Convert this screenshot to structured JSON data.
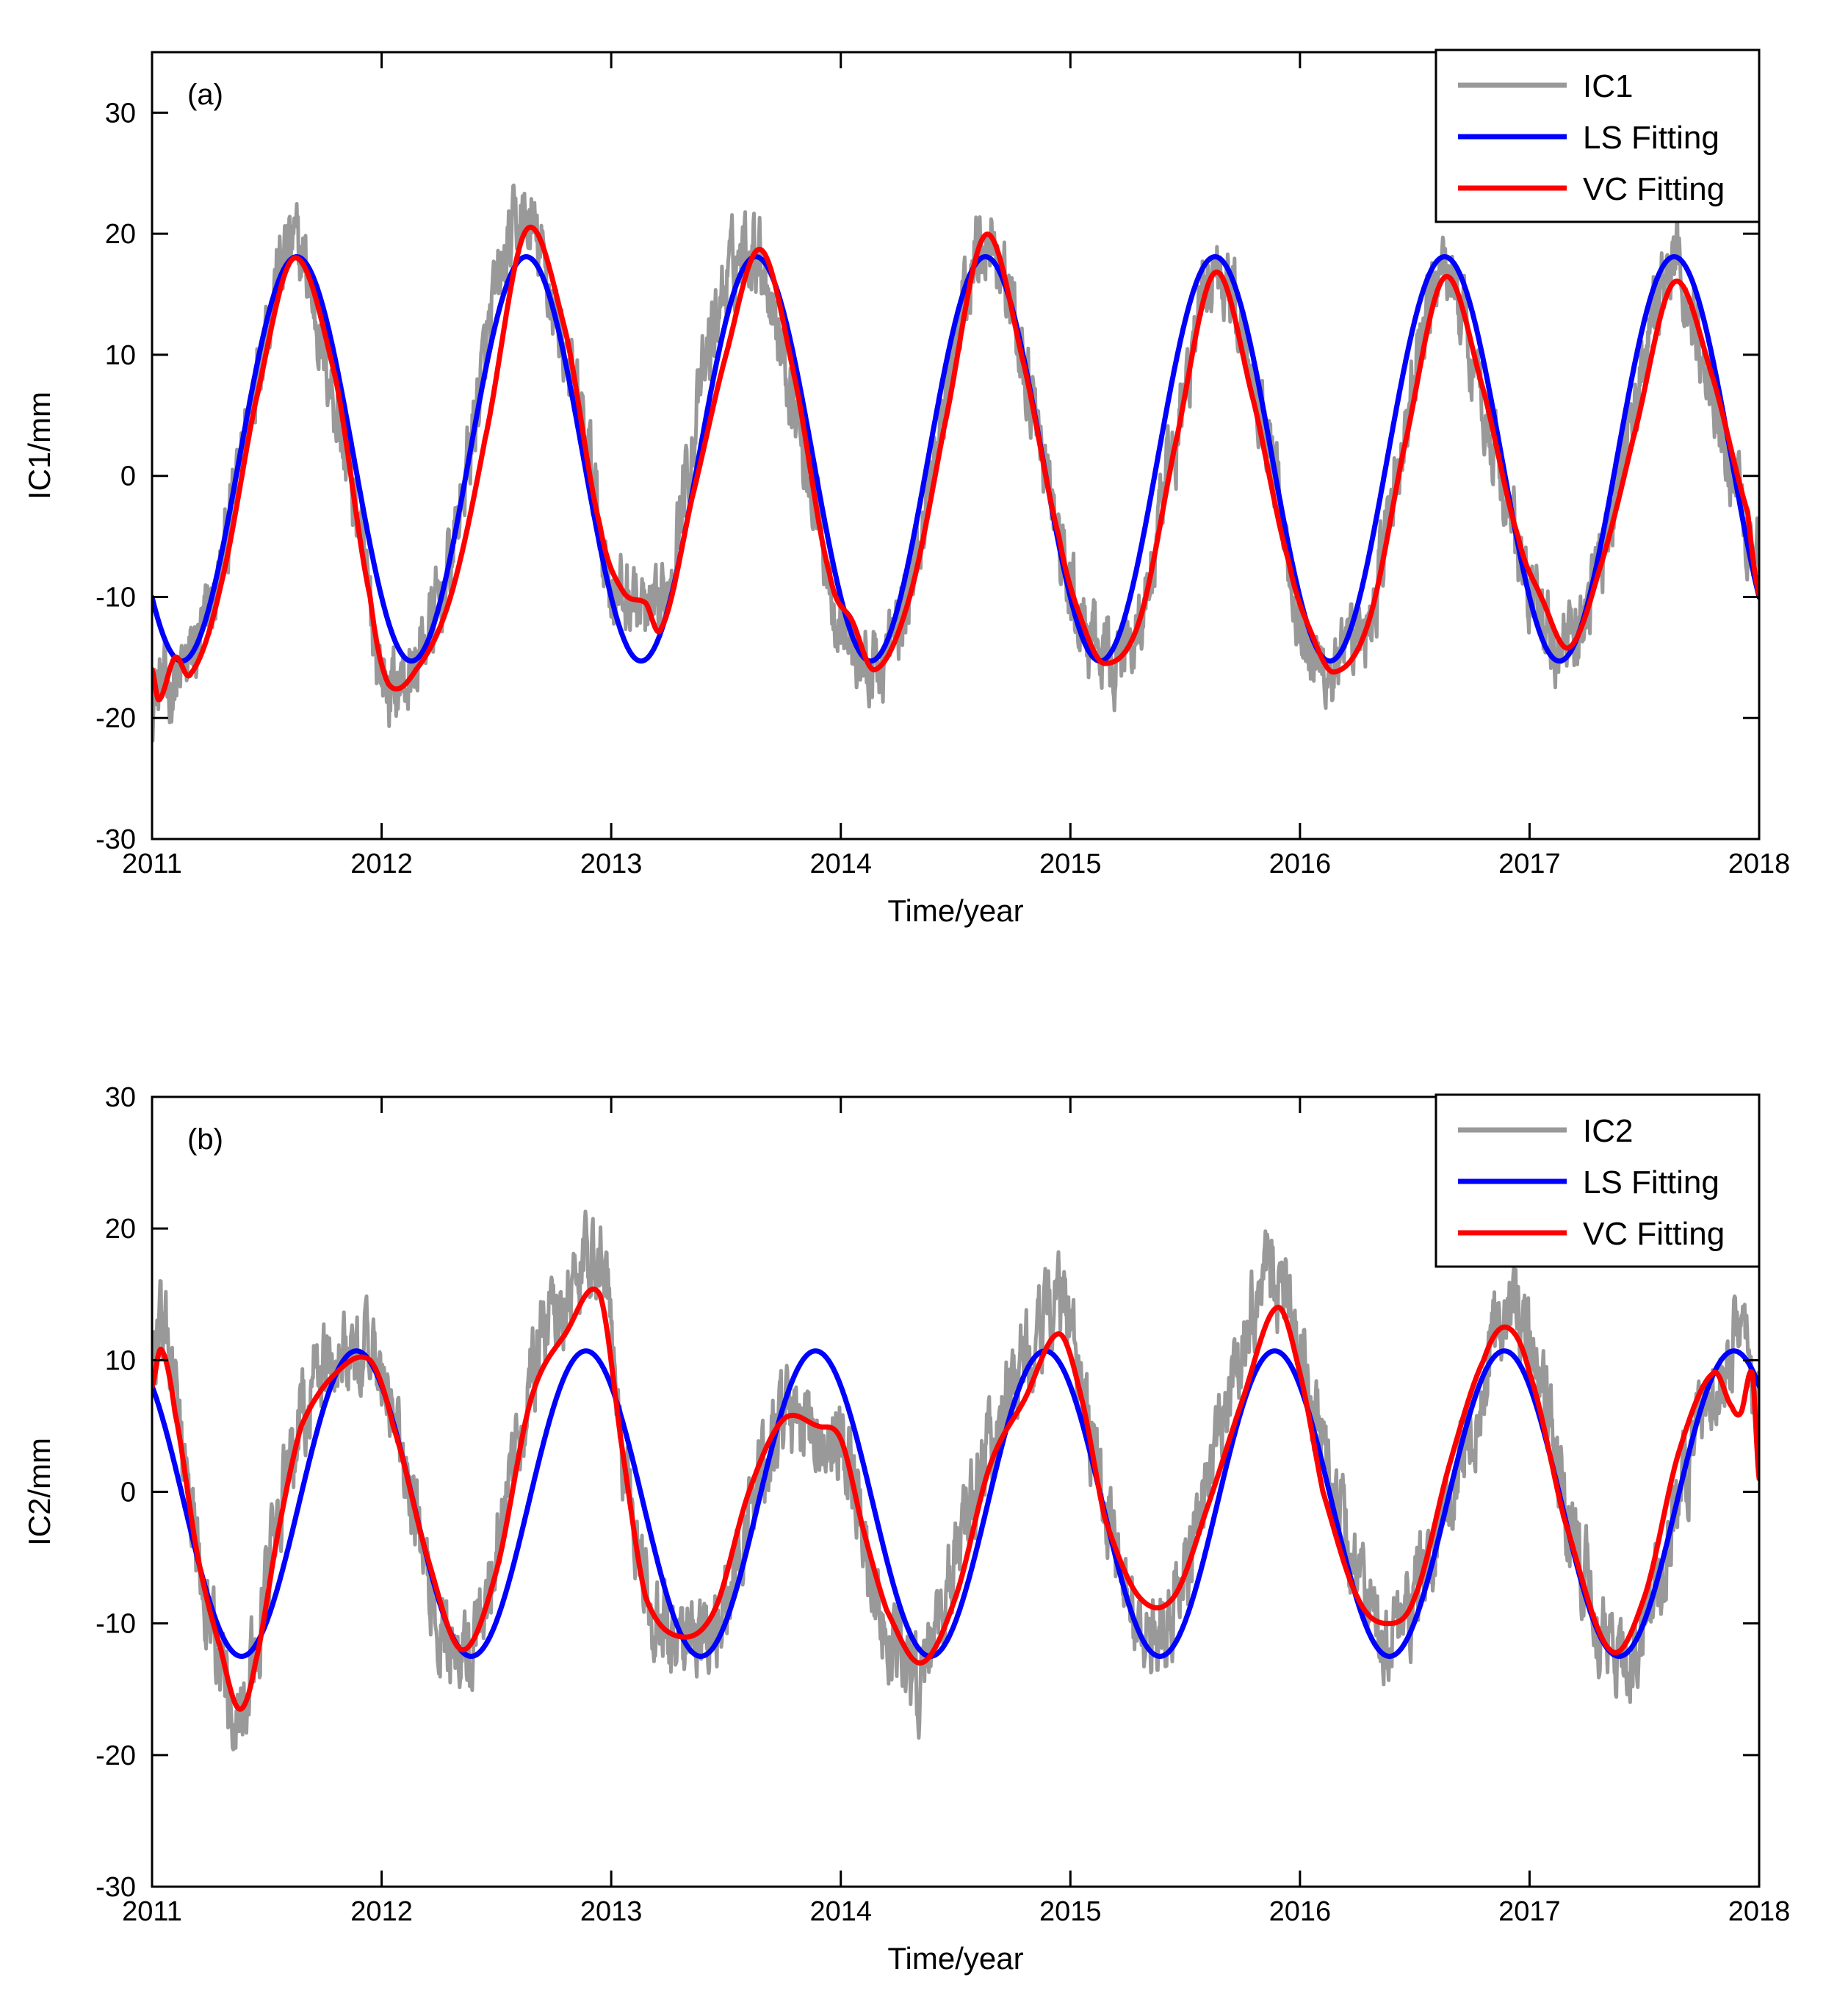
{
  "chart_data": [
    {
      "type": "line",
      "panel_label": "(a)",
      "xlabel": "Time/year",
      "ylabel": "IC1/mm",
      "xlim": [
        2011,
        2018
      ],
      "ylim": [
        -30,
        35
      ],
      "x_ticks": [
        2011,
        2012,
        2013,
        2014,
        2015,
        2016,
        2017,
        2018
      ],
      "y_ticks": [
        -30,
        -20,
        -10,
        0,
        10,
        20,
        30
      ],
      "legend_position": "top-right",
      "series": [
        {
          "name": "IC1",
          "color": "#999999",
          "description": "daily observed component (noisy)",
          "x": [
            2011.0,
            2011.1,
            2011.2,
            2011.3,
            2011.4,
            2011.5,
            2011.62,
            2011.75,
            2011.9,
            2012.0,
            2012.1,
            2012.2,
            2012.3,
            2012.4,
            2012.5,
            2012.62,
            2012.75,
            2012.9,
            2013.0,
            2013.1,
            2013.2,
            2013.3,
            2013.4,
            2013.5,
            2013.63,
            2013.75,
            2013.9,
            2014.0,
            2014.15,
            2014.3,
            2014.45,
            2014.63,
            2014.75,
            2014.9,
            2015.0,
            2015.15,
            2015.3,
            2015.45,
            2015.62,
            2015.75,
            2015.9,
            2016.0,
            2016.12,
            2016.3,
            2016.45,
            2016.62,
            2016.75,
            2016.9,
            2017.0,
            2017.18,
            2017.3,
            2017.45,
            2017.62,
            2017.75,
            2017.9,
            2018.0
          ],
          "y": [
            -18,
            -17,
            -14,
            -8,
            3,
            13,
            19,
            10,
            -4,
            -16,
            -17,
            -13,
            -7,
            4,
            15,
            21,
            14,
            2,
            -9,
            -10,
            -12,
            -3,
            8,
            16,
            19,
            10,
            -3,
            -12,
            -16,
            -9,
            6,
            20,
            13,
            0,
            -10,
            -15,
            -12,
            2,
            17,
            12,
            0,
            -12,
            -16,
            -12,
            3,
            17,
            10,
            -2,
            -10,
            -14,
            -7,
            5,
            17,
            10,
            0,
            -7
          ]
        },
        {
          "name": "LS Fitting",
          "color": "#0000ff",
          "description": "least-squares annual harmonic: y = 1.4 + 16.7*cos(2*pi*(t-0.63))",
          "model": {
            "mean": 1.4,
            "amplitude": 16.7,
            "peak_phase": 0.63
          },
          "x": [
            2011.0,
            2011.13,
            2011.38,
            2011.63,
            2011.88,
            2012.13,
            2012.38,
            2012.63,
            2012.88,
            2013.13,
            2013.38,
            2013.63,
            2013.88,
            2014.13,
            2014.38,
            2014.63,
            2014.88,
            2015.13,
            2015.38,
            2015.63,
            2015.88,
            2016.13,
            2016.38,
            2016.63,
            2016.88,
            2017.13,
            2017.38,
            2017.63,
            2017.88,
            2018.0
          ],
          "y": [
            -11.4,
            -15.3,
            1.4,
            18.1,
            1.4,
            -15.3,
            1.4,
            18.1,
            1.4,
            -15.3,
            1.4,
            18.1,
            1.4,
            -15.3,
            1.4,
            18.1,
            1.4,
            -15.3,
            1.4,
            18.1,
            1.4,
            -15.3,
            1.4,
            18.1,
            1.4,
            -15.3,
            1.4,
            18.1,
            1.4,
            -10.4
          ]
        },
        {
          "name": "VC Fitting",
          "color": "#ff0000",
          "description": "variable-coefficient fit",
          "x": [
            2011.0,
            2011.03,
            2011.1,
            2011.17,
            2011.3,
            2011.45,
            2011.62,
            2011.8,
            2011.95,
            2012.03,
            2012.15,
            2012.3,
            2012.45,
            2012.63,
            2012.8,
            2012.95,
            2013.05,
            2013.15,
            2013.22,
            2013.35,
            2013.5,
            2013.65,
            2013.8,
            2013.95,
            2014.05,
            2014.15,
            2014.3,
            2014.45,
            2014.63,
            2014.8,
            2014.95,
            2015.05,
            2015.15,
            2015.3,
            2015.45,
            2015.63,
            2015.8,
            2015.95,
            2016.05,
            2016.15,
            2016.3,
            2016.45,
            2016.63,
            2016.8,
            2016.95,
            2017.05,
            2017.17,
            2017.3,
            2017.45,
            2017.63,
            2017.8,
            2017.95,
            2018.0
          ],
          "y": [
            -16,
            -18.5,
            -15,
            -16.3,
            -9,
            6,
            18,
            8,
            -10,
            -17.2,
            -16,
            -10,
            3,
            20.3,
            12,
            -4,
            -9.5,
            -10.5,
            -12.5,
            -2,
            10,
            18.7,
            8,
            -8,
            -12,
            -16,
            -10,
            4,
            19.9,
            9,
            -5,
            -12,
            -15.5,
            -12,
            2,
            16.8,
            6,
            -7,
            -13,
            -16.2,
            -12,
            2,
            16.4,
            7,
            -5,
            -10,
            -14.2,
            -8,
            3,
            16,
            8,
            -3,
            -9.8
          ]
        }
      ]
    },
    {
      "type": "line",
      "panel_label": "(b)",
      "xlabel": "Time/year",
      "ylabel": "IC2/mm",
      "xlim": [
        2011,
        2018
      ],
      "ylim": [
        -30,
        30
      ],
      "x_ticks": [
        2011,
        2012,
        2013,
        2014,
        2015,
        2016,
        2017,
        2018
      ],
      "y_ticks": [
        -30,
        -20,
        -10,
        0,
        10,
        20,
        30
      ],
      "legend_position": "top-right",
      "series": [
        {
          "name": "IC2",
          "color": "#999999",
          "description": "daily observed component (noisy)",
          "x": [
            2011.0,
            2011.05,
            2011.15,
            2011.25,
            2011.35,
            2011.45,
            2011.55,
            2011.7,
            2011.85,
            2012.0,
            2012.1,
            2012.2,
            2012.3,
            2012.4,
            2012.55,
            2012.7,
            2012.85,
            2012.97,
            2013.05,
            2013.15,
            2013.3,
            2013.45,
            2013.6,
            2013.75,
            2013.9,
            2014.05,
            2014.15,
            2014.25,
            2014.35,
            2014.5,
            2014.7,
            2014.85,
            2014.95,
            2015.1,
            2015.25,
            2015.35,
            2015.5,
            2015.7,
            2015.88,
            2016.0,
            2016.15,
            2016.3,
            2016.4,
            2016.55,
            2016.75,
            2016.9,
            2017.05,
            2017.2,
            2017.35,
            2017.45,
            2017.6,
            2017.75,
            2017.9,
            2018.0
          ],
          "y": [
            10,
            12,
            0,
            -9,
            -16,
            -12,
            -2,
            8,
            11,
            9,
            2,
            -7,
            -12,
            -11,
            0,
            12,
            16,
            18,
            3,
            -8,
            -12,
            -10,
            -2,
            5,
            4,
            2,
            -8,
            -12,
            -14,
            -5,
            6,
            11,
            14,
            3,
            -8,
            -11,
            -6,
            8,
            16,
            10,
            0,
            -8,
            -10,
            -6,
            5,
            13,
            8,
            -4,
            -12,
            -13,
            -4,
            6,
            11,
            8
          ]
        },
        {
          "name": "LS Fitting",
          "color": "#0000ff",
          "description": "least-squares annual harmonic: y = -0.9 + 11.6*cos(2*pi*(t-0.89))",
          "model": {
            "mean": -0.9,
            "amplitude": 11.6,
            "peak_phase": 0.89
          },
          "x": [
            2011.0,
            2011.14,
            2011.39,
            2011.64,
            2011.89,
            2012.14,
            2012.39,
            2012.64,
            2012.89,
            2013.14,
            2013.39,
            2013.64,
            2013.89,
            2014.14,
            2014.39,
            2014.64,
            2014.89,
            2015.14,
            2015.39,
            2015.64,
            2015.89,
            2016.14,
            2016.39,
            2016.64,
            2016.89,
            2017.14,
            2017.39,
            2017.64,
            2017.89,
            2018.0
          ],
          "y": [
            8.0,
            -0.9,
            -12.5,
            -0.9,
            10.7,
            -0.9,
            -12.5,
            -0.9,
            10.7,
            -0.9,
            -12.5,
            -0.9,
            10.7,
            -0.9,
            -12.5,
            -0.9,
            10.7,
            -0.9,
            -12.5,
            -0.9,
            10.7,
            -0.9,
            -12.5,
            -0.9,
            10.7,
            -0.9,
            -12.5,
            -0.9,
            10.7,
            9.4
          ]
        },
        {
          "name": "VC Fitting",
          "color": "#ff0000",
          "description": "variable-coefficient fit",
          "x": [
            2011.0,
            2011.04,
            2011.1,
            2011.2,
            2011.3,
            2011.38,
            2011.45,
            2011.55,
            2011.65,
            2011.8,
            2011.95,
            2012.05,
            2012.2,
            2012.35,
            2012.5,
            2012.65,
            2012.8,
            2012.95,
            2013.05,
            2013.15,
            2013.3,
            2013.45,
            2013.6,
            2013.75,
            2013.9,
            2014.0,
            2014.1,
            2014.2,
            2014.35,
            2014.5,
            2014.65,
            2014.8,
            2014.95,
            2015.05,
            2015.15,
            2015.3,
            2015.45,
            2015.6,
            2015.75,
            2015.9,
            2016.0,
            2016.1,
            2016.25,
            2016.38,
            2016.5,
            2016.65,
            2016.8,
            2016.9,
            2017.0,
            2017.15,
            2017.35,
            2017.5,
            2017.65,
            2017.8,
            2017.88,
            2017.92,
            2017.97,
            2018.0
          ],
          "y": [
            8,
            10.8,
            6,
            -5,
            -12,
            -16.5,
            -13,
            -3,
            5,
            9,
            10,
            5,
            -5,
            -12,
            -6,
            7,
            12,
            15,
            3,
            -8,
            -11,
            -9,
            0,
            5.5,
            5,
            4,
            -3,
            -9,
            -13,
            -8,
            2,
            7,
            12,
            7,
            -2,
            -8,
            -8,
            -1,
            7,
            14,
            9,
            0,
            -8,
            -10,
            -8,
            2,
            10,
            12.5,
            9,
            -2,
            -12,
            -8,
            3,
            9,
            6.5,
            6,
            9,
            1
          ]
        }
      ]
    }
  ]
}
